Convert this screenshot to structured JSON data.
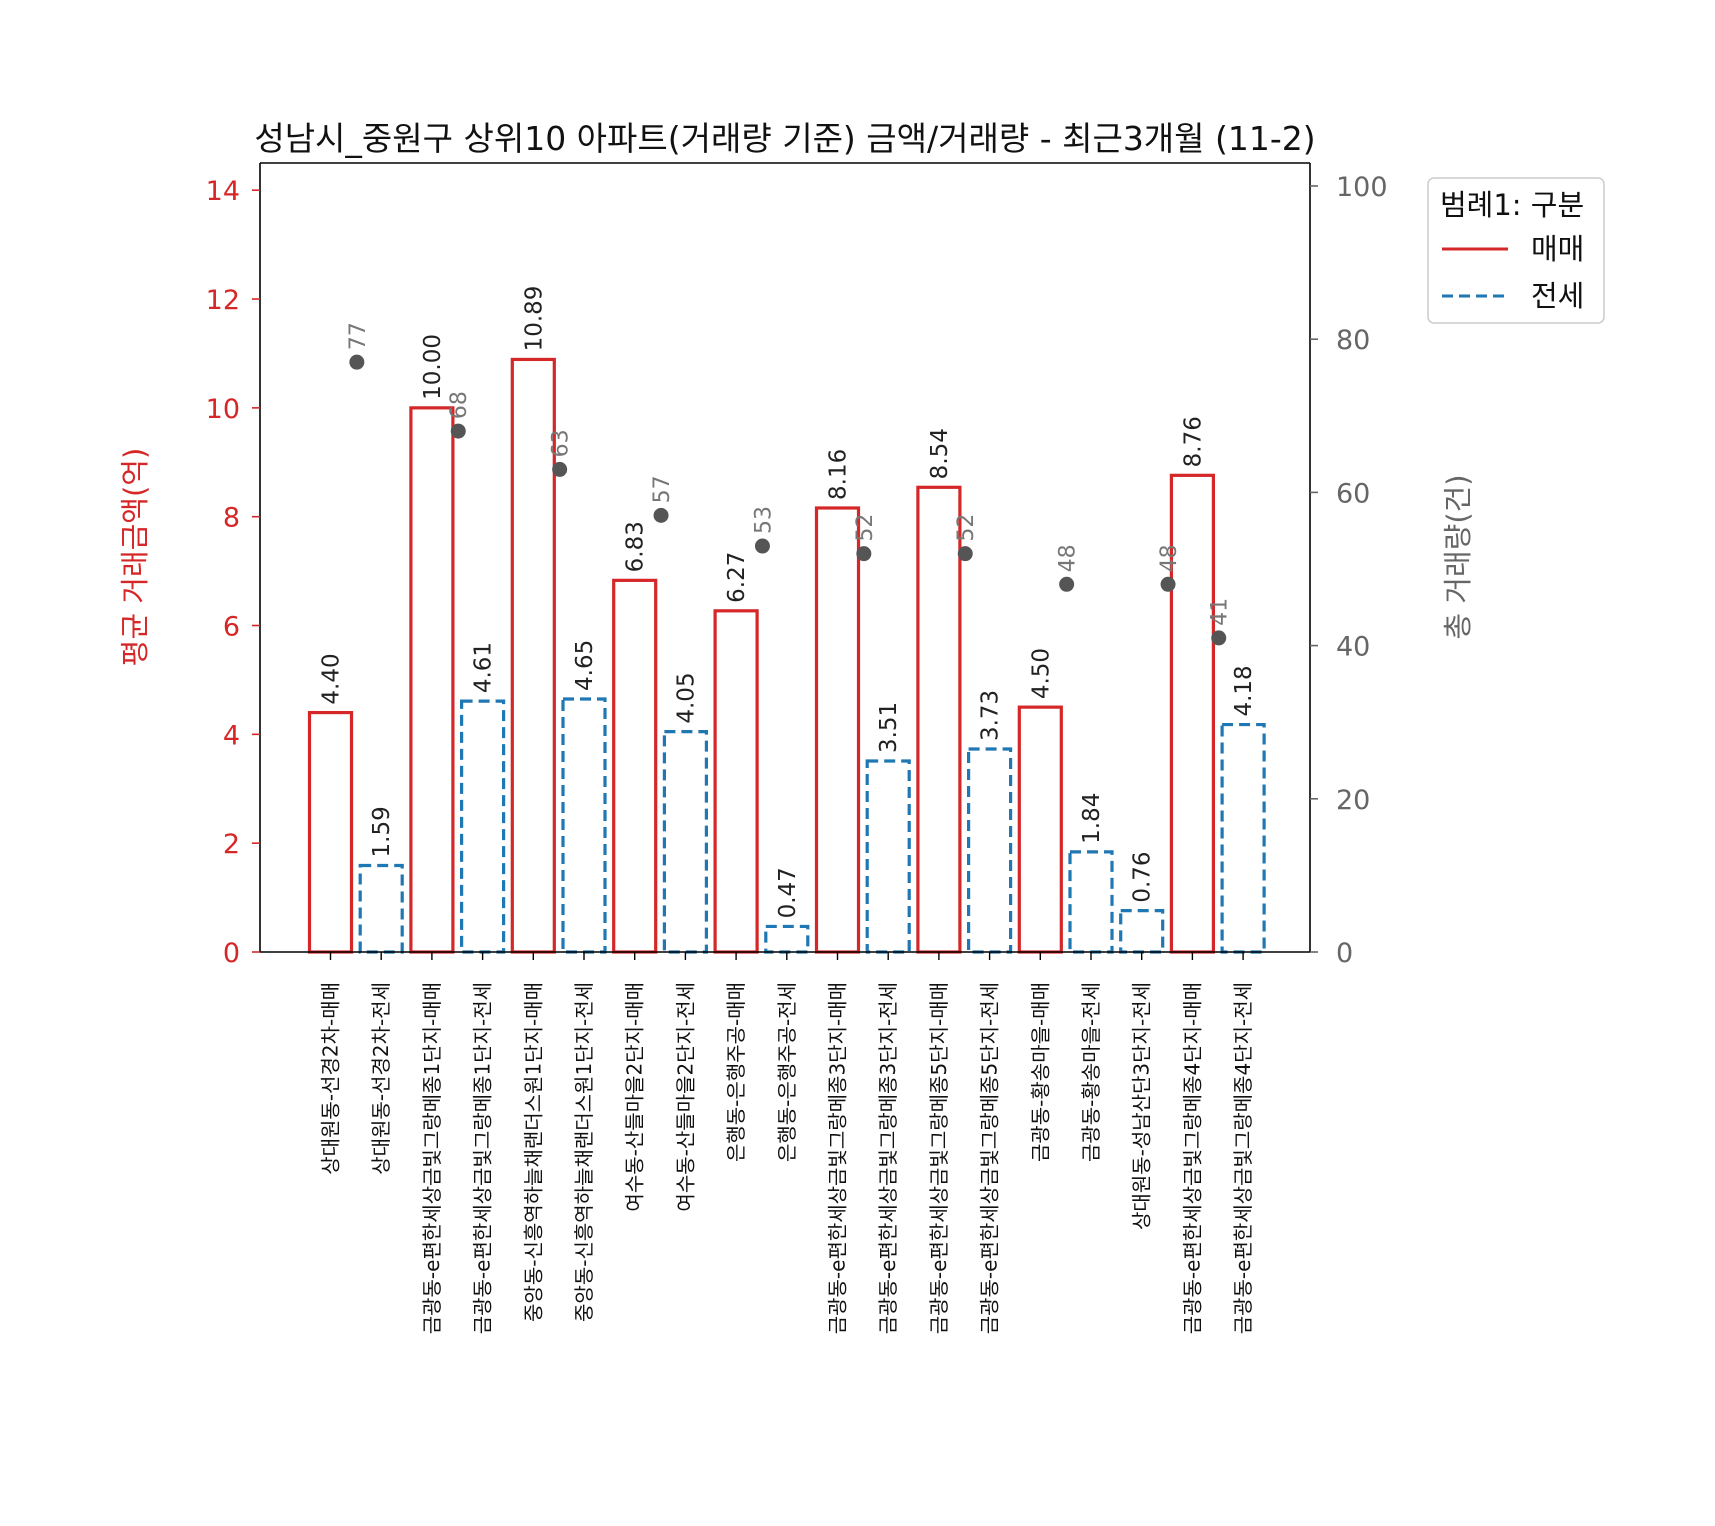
{
  "colors": {
    "sale": "#d62728",
    "jeonse": "#1f77b4",
    "count_marker": "#555555",
    "right_axis": "#666666"
  },
  "chart_data": {
    "type": "bar",
    "title": "성남시_중원구 상위10 아파트(거래량 기준) 금액/거래량 - 최근3개월 (11-2)",
    "ylabel": "평균 거래금액(억)",
    "y2label": "총 거래량(건)",
    "ylim": [
      0,
      14.5
    ],
    "y2lim": [
      0,
      103
    ],
    "yticks": [
      "0",
      "2",
      "4",
      "6",
      "8",
      "10",
      "12",
      "14"
    ],
    "y2ticks": [
      "0",
      "20",
      "40",
      "60",
      "80",
      "100"
    ],
    "legend": {
      "title": "범례1: 구분",
      "placement": "outside-top-right",
      "entries": [
        {
          "label": "매매",
          "style": "solid",
          "color": "#d62728"
        },
        {
          "label": "전세",
          "style": "dashed",
          "color": "#1f77b4"
        }
      ]
    },
    "categories": [
      "상대원동-선경2차-매매",
      "상대원동-선경2차-전세",
      "금광동-e편한세상금빛그랑메종1단지-매매",
      "금광동-e편한세상금빛그랑메종1단지-전세",
      "중앙동-신흥역하늘채랜더스원1단지-매매",
      "중앙동-신흥역하늘채랜더스원1단지-전세",
      "여수동-산들마을2단지-매매",
      "여수동-산들마을2단지-전세",
      "은행동-은행주공-매매",
      "은행동-은행주공-전세",
      "금광동-e편한세상금빛그랑메종3단지-매매",
      "금광동-e편한세상금빛그랑메종3단지-전세",
      "금광동-e편한세상금빛그랑메종5단지-매매",
      "금광동-e편한세상금빛그랑메종5단지-전세",
      "금광동-황송마을-매매",
      "금광동-황송마을-전세",
      "상대원동-성남산단3단지-전세",
      "금광동-e편한세상금빛그랑메종4단지-매매",
      "금광동-e편한세상금빛그랑메종4단지-전세"
    ],
    "series_kind": [
      "매매",
      "전세",
      "매매",
      "전세",
      "매매",
      "전세",
      "매매",
      "전세",
      "매매",
      "전세",
      "매매",
      "전세",
      "매매",
      "전세",
      "매매",
      "전세",
      "전세",
      "매매",
      "전세"
    ],
    "values": [
      4.4,
      1.59,
      10.0,
      4.61,
      10.89,
      4.65,
      6.83,
      4.05,
      6.27,
      0.47,
      8.16,
      3.51,
      8.54,
      3.73,
      4.5,
      1.84,
      0.76,
      8.76,
      4.18
    ],
    "value_labels": [
      "4.40",
      "1.59",
      "10.00",
      "4.61",
      "10.89",
      "4.65",
      "6.83",
      "4.05",
      "6.27",
      "0.47",
      "8.16",
      "3.51",
      "8.54",
      "3.73",
      "4.50",
      "1.84",
      "0.76",
      "8.76",
      "4.18"
    ],
    "counts": [
      {
        "after_index": 0,
        "value": 77,
        "label": "77"
      },
      {
        "after_index": 2,
        "value": 68,
        "label": "68"
      },
      {
        "after_index": 4,
        "value": 63,
        "label": "63"
      },
      {
        "after_index": 6,
        "value": 57,
        "label": "57"
      },
      {
        "after_index": 8,
        "value": 53,
        "label": "53"
      },
      {
        "after_index": 10,
        "value": 52,
        "label": "52"
      },
      {
        "after_index": 12,
        "value": 52,
        "label": "52"
      },
      {
        "after_index": 14,
        "value": 48,
        "label": "48"
      },
      {
        "after_index": 16,
        "value": 48,
        "label": "48"
      },
      {
        "after_index": 17,
        "value": 41,
        "label": "41"
      }
    ]
  }
}
